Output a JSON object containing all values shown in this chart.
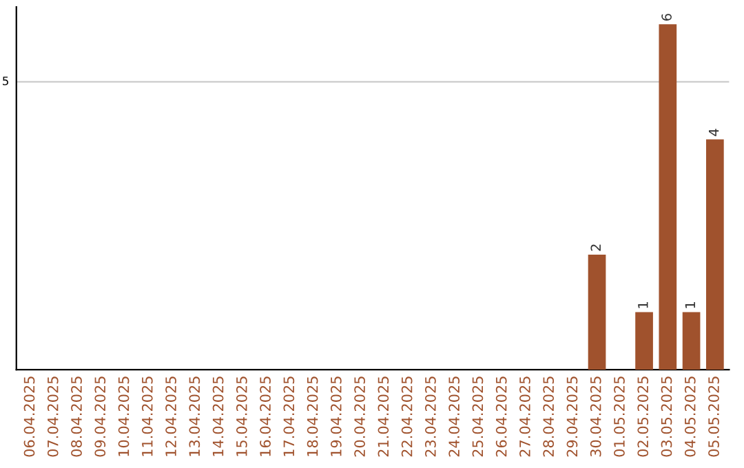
{
  "chart_data": {
    "type": "bar",
    "categories": [
      "06.04.2025",
      "07.04.2025",
      "08.04.2025",
      "09.04.2025",
      "10.04.2025",
      "11.04.2025",
      "12.04.2025",
      "13.04.2025",
      "14.04.2025",
      "15.04.2025",
      "16.04.2025",
      "17.04.2025",
      "18.04.2025",
      "19.04.2025",
      "20.04.2025",
      "21.04.2025",
      "22.04.2025",
      "23.04.2025",
      "24.04.2025",
      "25.04.2025",
      "26.04.2025",
      "27.04.2025",
      "28.04.2025",
      "29.04.2025",
      "30.04.2025",
      "01.05.2025",
      "02.05.2025",
      "03.05.2025",
      "04.05.2025",
      "05.05.2025"
    ],
    "values": [
      null,
      null,
      null,
      null,
      null,
      null,
      null,
      null,
      null,
      null,
      null,
      null,
      null,
      null,
      null,
      null,
      null,
      null,
      null,
      null,
      null,
      null,
      null,
      null,
      2,
      null,
      1,
      6,
      1,
      4
    ],
    "data_labels": true,
    "ylim": [
      0,
      6.3
    ],
    "color": "#a0522d",
    "ref_lines": [
      {
        "axis": "y",
        "value": 5,
        "label": "5",
        "color": "#cccccc"
      }
    ]
  }
}
